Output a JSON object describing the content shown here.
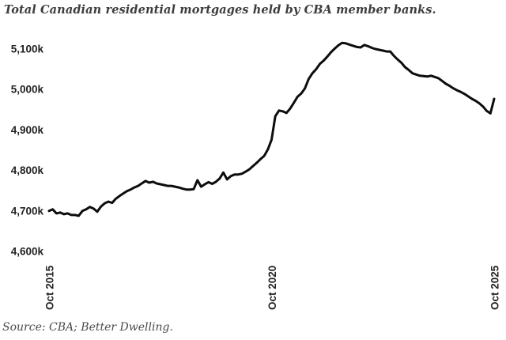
{
  "header": {
    "title": "Total Canadian residential mortgages held by CBA member banks."
  },
  "footer": {
    "source": "Source: CBA; Better Dwelling."
  },
  "chart_data": {
    "type": "line",
    "title": "Total Canadian residential mortgages held by CBA member banks.",
    "ylabel": "",
    "xlabel": "",
    "unit": "k (thousands of mortgages)",
    "x_start": "Oct 2015",
    "x_end": "Oct 2025",
    "frequency": "monthly",
    "grid": false,
    "legend": false,
    "line_color": "#0d0d0d",
    "line_width": 3,
    "background_color": "#ffffff",
    "tick_color": "#222222",
    "ylim": [
      4570,
      5140
    ],
    "yticks": [
      {
        "value": 5100,
        "label": "5,100k"
      },
      {
        "value": 5000,
        "label": "5,000k"
      },
      {
        "value": 4900,
        "label": "4,900k"
      },
      {
        "value": 4800,
        "label": "4,800k"
      },
      {
        "value": 4700,
        "label": "4,700k"
      },
      {
        "value": 4600,
        "label": "4,600k"
      }
    ],
    "xticks": [
      {
        "index": 0,
        "label": "Oct 2015"
      },
      {
        "index": 60,
        "label": "Oct 2020"
      },
      {
        "index": 120,
        "label": "Oct 2025"
      }
    ],
    "values": [
      4700,
      4704,
      4694,
      4696,
      4692,
      4694,
      4690,
      4690,
      4688,
      4700,
      4704,
      4710,
      4706,
      4698,
      4711,
      4719,
      4723,
      4720,
      4730,
      4737,
      4743,
      4749,
      4753,
      4758,
      4762,
      4768,
      4774,
      4770,
      4772,
      4768,
      4766,
      4764,
      4762,
      4762,
      4760,
      4758,
      4755,
      4753,
      4753,
      4754,
      4776,
      4760,
      4766,
      4771,
      4767,
      4772,
      4780,
      4795,
      4778,
      4786,
      4790,
      4790,
      4792,
      4797,
      4803,
      4811,
      4819,
      4828,
      4836,
      4852,
      4876,
      4934,
      4948,
      4946,
      4942,
      4953,
      4967,
      4982,
      4990,
      5003,
      5026,
      5040,
      5050,
      5063,
      5071,
      5081,
      5092,
      5101,
      5109,
      5115,
      5114,
      5111,
      5108,
      5105,
      5104,
      5110,
      5107,
      5103,
      5100,
      5098,
      5096,
      5094,
      5094,
      5083,
      5074,
      5066,
      5055,
      5048,
      5040,
      5037,
      5034,
      5033,
      5032,
      5034,
      5031,
      5028,
      5021,
      5014,
      5009,
      5003,
      4998,
      4994,
      4989,
      4983,
      4977,
      4972,
      4966,
      4958,
      4947,
      4941,
      4977
    ]
  }
}
